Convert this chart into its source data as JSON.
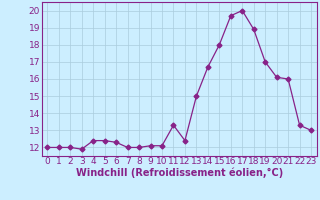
{
  "x": [
    0,
    1,
    2,
    3,
    4,
    5,
    6,
    7,
    8,
    9,
    10,
    11,
    12,
    13,
    14,
    15,
    16,
    17,
    18,
    19,
    20,
    21,
    22,
    23
  ],
  "y": [
    12,
    12,
    12,
    11.9,
    12.4,
    12.4,
    12.3,
    12,
    12,
    12.1,
    12.1,
    13.3,
    12.4,
    15.0,
    16.7,
    18.0,
    19.7,
    20.0,
    18.9,
    17.0,
    16.1,
    16.0,
    13.3,
    13.0
  ],
  "line_color": "#882288",
  "marker": "D",
  "marker_size": 2.5,
  "bg_color": "#cceeff",
  "grid_color": "#aaccdd",
  "xlabel": "Windchill (Refroidissement éolien,°C)",
  "xlabel_color": "#882288",
  "tick_color": "#882288",
  "ylim": [
    11.5,
    20.5
  ],
  "yticks": [
    12,
    13,
    14,
    15,
    16,
    17,
    18,
    19,
    20
  ],
  "xlim": [
    -0.5,
    23.5
  ],
  "xticks": [
    0,
    1,
    2,
    3,
    4,
    5,
    6,
    7,
    8,
    9,
    10,
    11,
    12,
    13,
    14,
    15,
    16,
    17,
    18,
    19,
    20,
    21,
    22,
    23
  ],
  "font_size": 6.5,
  "label_font_size": 7
}
